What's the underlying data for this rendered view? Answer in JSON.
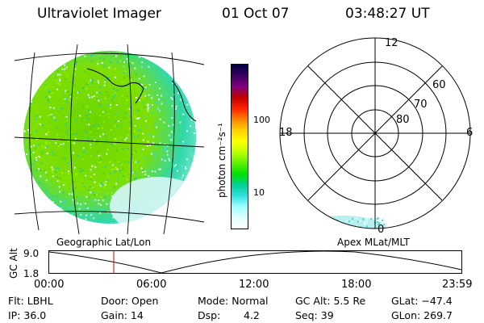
{
  "header": {
    "instrument": "Ultraviolet Imager",
    "date": "01 Oct 07",
    "time": "03:48:27 UT"
  },
  "colorbar": {
    "unit_label": "photon cm⁻²s⁻¹",
    "ticks": [
      "100",
      "10"
    ],
    "scale": "log",
    "colors": [
      "#000040",
      "#3a0060",
      "#800080",
      "#c00000",
      "#ff2000",
      "#ff8000",
      "#ffd000",
      "#ffff00",
      "#c0ff00",
      "#60f000",
      "#00e000",
      "#00d090",
      "#30e0e0",
      "#a0ffff",
      "#e0ffff",
      "#ffffff"
    ]
  },
  "polar_plot": {
    "mlt_labels": {
      "top": "12",
      "left": "18",
      "right": "6",
      "bottom": "0"
    },
    "lat_labels": [
      "60",
      "70",
      "80"
    ]
  },
  "timeline": {
    "left_label": "Geographic Lat/Lon",
    "right_label": "Apex MLat/MLT",
    "axis_title": "GC Alt",
    "y_ticks": [
      "9.0",
      "1.8"
    ],
    "x_ticks": [
      "00:00",
      "06:00",
      "12:00",
      "18:00",
      "23:59"
    ],
    "marker_color": "#d00000"
  },
  "info": {
    "flt": "Flt: LBHL",
    "ip": "IP: 36.0",
    "door": "Door: Open",
    "gain": "Gain: 14",
    "mode": "Mode: Normal",
    "dsp_label": "Dsp:",
    "dsp_value": "4.2",
    "gc_alt": "GC Alt: 5.5 Re",
    "seq": "Seq: 39",
    "glat": "GLat: −47.4",
    "glon": "GLon: 269.7"
  }
}
